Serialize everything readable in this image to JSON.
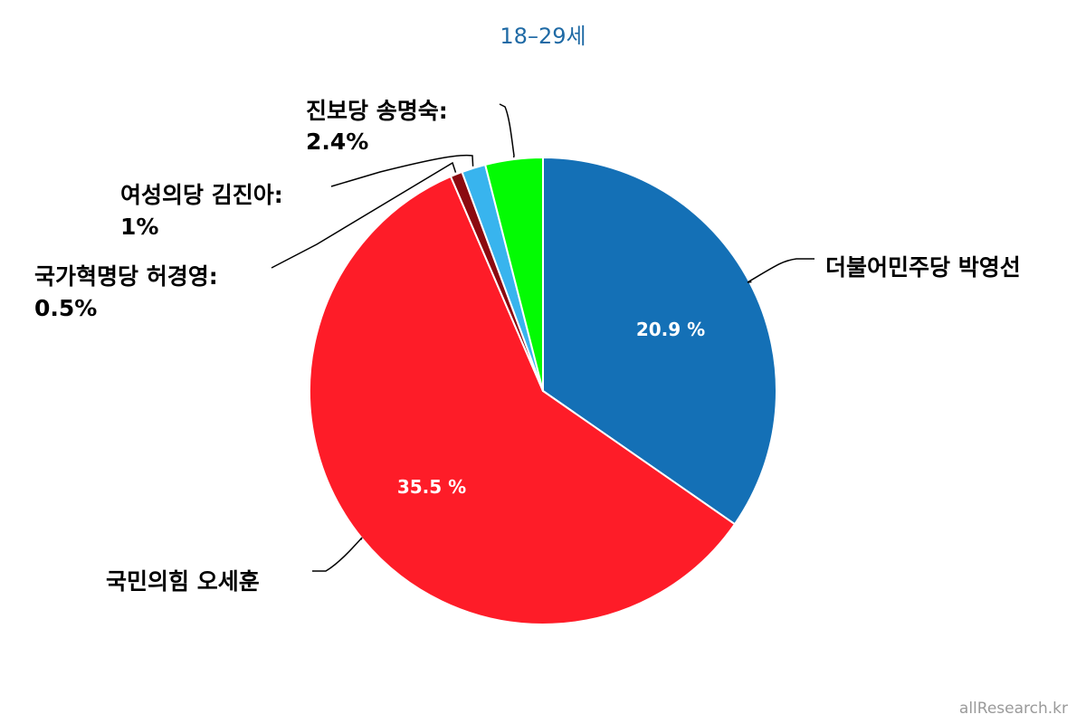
{
  "chart_data": {
    "type": "pie",
    "title": "18–29세",
    "start_at": "top",
    "direction": "clockwise",
    "slices": [
      {
        "name": "더불어민주당 박영선",
        "label": "더불어민주당 박영선",
        "value": 20.9,
        "color": "#1470b6",
        "inner_label": "20.9 %"
      },
      {
        "name": "국민의힘 오세훈",
        "label": "국민의힘 오세훈",
        "value": 35.5,
        "color": "#fe1c28",
        "inner_label": "35.5 %"
      },
      {
        "name": "국가혁명당 허경영",
        "label": "국가혁명당 허경영:",
        "value_label": "0.5%",
        "value": 0.5,
        "color": "#8b0a10"
      },
      {
        "name": "여성의당 김진아",
        "label": "여성의당 김진아:",
        "value_label": "1%",
        "value": 1,
        "color": "#38b4ee"
      },
      {
        "name": "진보당 송명숙",
        "label": "진보당 송명숙:",
        "value_label": "2.4%",
        "value": 2.4,
        "color": "#03fb03"
      }
    ]
  },
  "watermark": "allResearch.kr"
}
